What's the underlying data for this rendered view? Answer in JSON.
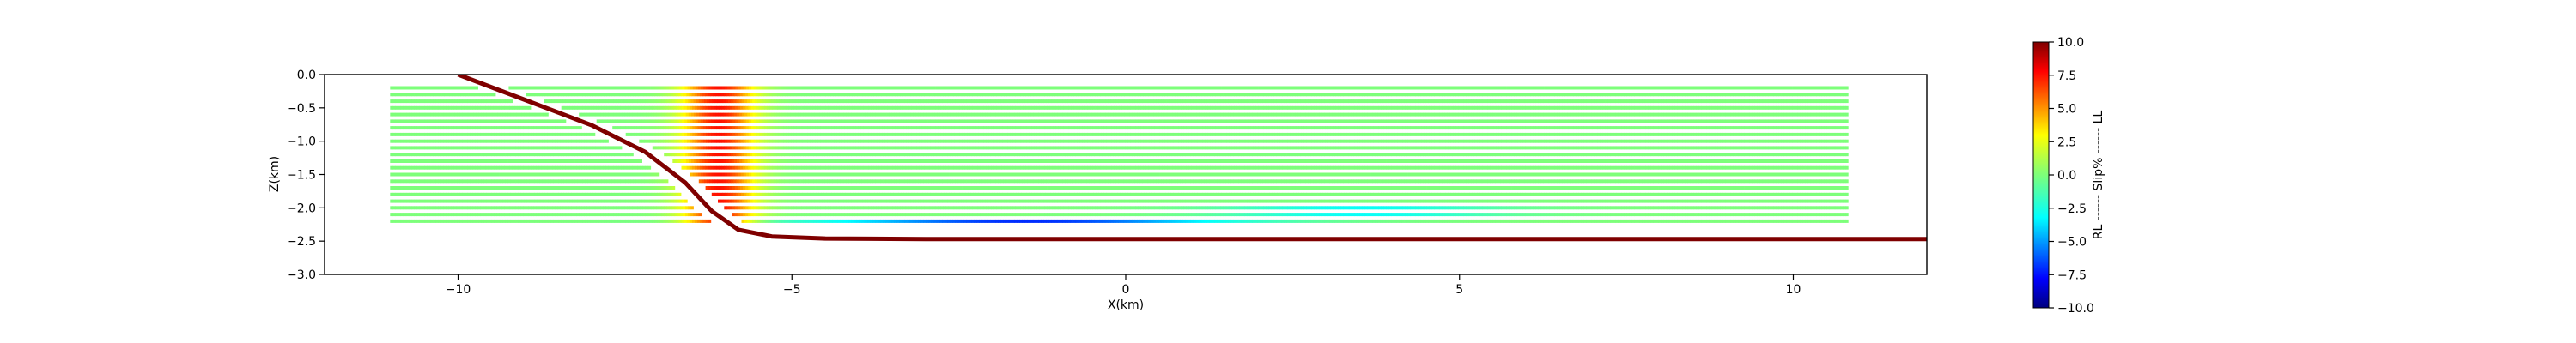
{
  "chart_data": {
    "type": "scatter",
    "title": "",
    "xlabel": "X(km)",
    "ylabel": "Z(km)",
    "xlim": [
      -12,
      12
    ],
    "ylim": [
      -3.0,
      0.0
    ],
    "x_ticks": [
      -10,
      -5,
      0,
      5,
      10
    ],
    "x_tick_labels": [
      "−10",
      "−5",
      "0",
      "5",
      "10"
    ],
    "y_ticks": [
      0.0,
      -0.5,
      -1.0,
      -1.5,
      -2.0,
      -2.5,
      -3.0
    ],
    "y_tick_labels": [
      "0.0",
      "−0.5",
      "−1.0",
      "−1.5",
      "−2.0",
      "−2.5",
      "−3.0"
    ],
    "grid": false,
    "rows": {
      "z_top": -0.2,
      "z_bottom": -2.2,
      "count": 21,
      "x_right": 10.8,
      "x_left_shallow": -11.0,
      "x_left_deep": -11.0
    },
    "slip_zones": [
      {
        "name": "",
        "x_center": -6.1,
        "x_half_width": 0.8,
        "z_min": -2.25,
        "z_max": -0.1,
        "peak": 7.5
      },
      {
        "name": "",
        "x_center": -1.5,
        "x_half_width": 4.5,
        "z_min": -2.25,
        "z_max": -2.15,
        "peak": -7.0
      },
      {
        "name": "",
        "x_center": 3.5,
        "x_half_width": 3.0,
        "z_min": -2.15,
        "z_max": -1.95,
        "peak": -3.0
      }
    ],
    "fault_trace": {
      "color": "#7f0000",
      "points": [
        [
          -10.0,
          0.0
        ],
        [
          -9.0,
          -0.38
        ],
        [
          -8.0,
          -0.76
        ],
        [
          -7.2,
          -1.16
        ],
        [
          -6.6,
          -1.62
        ],
        [
          -6.2,
          -2.05
        ],
        [
          -5.8,
          -2.33
        ],
        [
          -5.3,
          -2.43
        ],
        [
          -4.5,
          -2.46
        ],
        [
          -3.0,
          -2.47
        ],
        [
          0.0,
          -2.47
        ],
        [
          5.0,
          -2.47
        ],
        [
          10.0,
          -2.47
        ],
        [
          12.0,
          -2.47
        ]
      ]
    },
    "colorbar": {
      "label": "RL ------ Slip% ------ LL",
      "vmin": -10.0,
      "vmax": 10.0,
      "ticks": [
        10.0,
        7.5,
        5.0,
        2.5,
        0.0,
        -2.5,
        -5.0,
        -7.5,
        -10.0
      ],
      "tick_labels": [
        "10.0",
        "7.5",
        "5.0",
        "2.5",
        "0.0",
        "−2.5",
        "−5.0",
        "−7.5",
        "−10.0"
      ],
      "colormap": "jet"
    }
  }
}
